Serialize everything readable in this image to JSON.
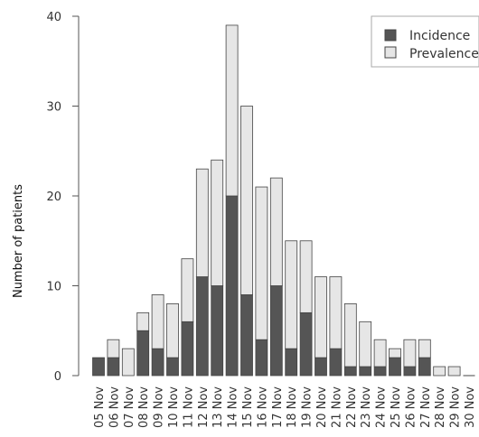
{
  "chart_data": {
    "type": "bar",
    "stacked": true,
    "title": "",
    "xlabel": "",
    "ylabel": "Number of patients",
    "ylim": [
      0,
      40
    ],
    "yticks": [
      0,
      10,
      20,
      30,
      40
    ],
    "grid": false,
    "legend_position": "top-right",
    "categories": [
      "05 Nov",
      "06 Nov",
      "07 Nov",
      "08 Nov",
      "09 Nov",
      "10 Nov",
      "11 Nov",
      "12 Nov",
      "13 Nov",
      "14 Nov",
      "15 Nov",
      "16 Nov",
      "17 Nov",
      "18 Nov",
      "19 Nov",
      "20 Nov",
      "21 Nov",
      "22 Nov",
      "23 Nov",
      "24 Nov",
      "25 Nov",
      "26 Nov",
      "27 Nov",
      "28 Nov",
      "29 Nov",
      "30 Nov"
    ],
    "series": [
      {
        "name": "Incidence",
        "color": "#555555",
        "values": [
          2,
          2,
          0,
          5,
          3,
          2,
          6,
          11,
          10,
          20,
          9,
          4,
          10,
          3,
          7,
          2,
          3,
          1,
          1,
          1,
          2,
          1,
          2,
          0,
          0,
          0
        ]
      },
      {
        "name": "Prevalence",
        "color": "#e6e6e6",
        "values": [
          0,
          2,
          3,
          2,
          6,
          6,
          7,
          12,
          14,
          19,
          21,
          17,
          12,
          12,
          8,
          9,
          8,
          7,
          5,
          3,
          1,
          3,
          2,
          1,
          1,
          0
        ]
      }
    ]
  }
}
